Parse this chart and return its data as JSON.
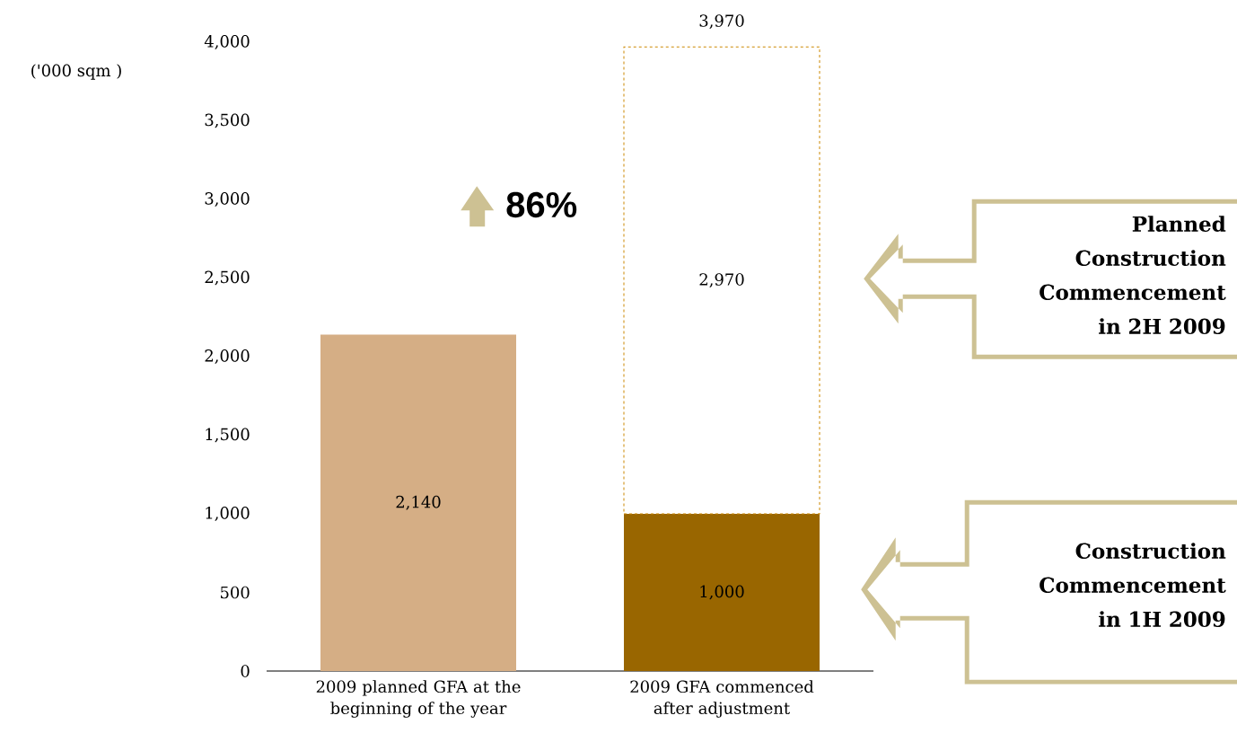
{
  "chart_data": {
    "type": "bar",
    "stacked": true,
    "categories": [
      "2009 planned GFA at the beginning of the year",
      "2009 GFA commenced after adjustment"
    ],
    "series": [
      {
        "colors": [
          "#d5ae85",
          "#996600"
        ],
        "values": [
          2140,
          1000
        ],
        "value_labels": [
          "2,140",
          "1,000"
        ]
      },
      {
        "color": "#ffffff",
        "line_style": "dashed",
        "values": [
          null,
          2970
        ],
        "value_labels": [
          null,
          "2,970"
        ]
      }
    ],
    "totals": [
      null,
      "3,970"
    ],
    "ylim": [
      0,
      4000
    ],
    "yticks": [
      {
        "value": 0,
        "label": "0"
      },
      {
        "value": 500,
        "label": "500"
      },
      {
        "value": 1000,
        "label": "1,000"
      },
      {
        "value": 1500,
        "label": "1,500"
      },
      {
        "value": 2000,
        "label": "2,000"
      },
      {
        "value": 2500,
        "label": "2,500"
      },
      {
        "value": 3000,
        "label": "3,000"
      },
      {
        "value": 3500,
        "label": "3,500"
      },
      {
        "value": 4000,
        "label": "4,000"
      }
    ],
    "grid": false,
    "annotations": [
      "('000 sqm )",
      "86%",
      "Planned Construction Commencement in 2H 2009",
      "Construction Commencement in 1H 2009"
    ]
  }
}
